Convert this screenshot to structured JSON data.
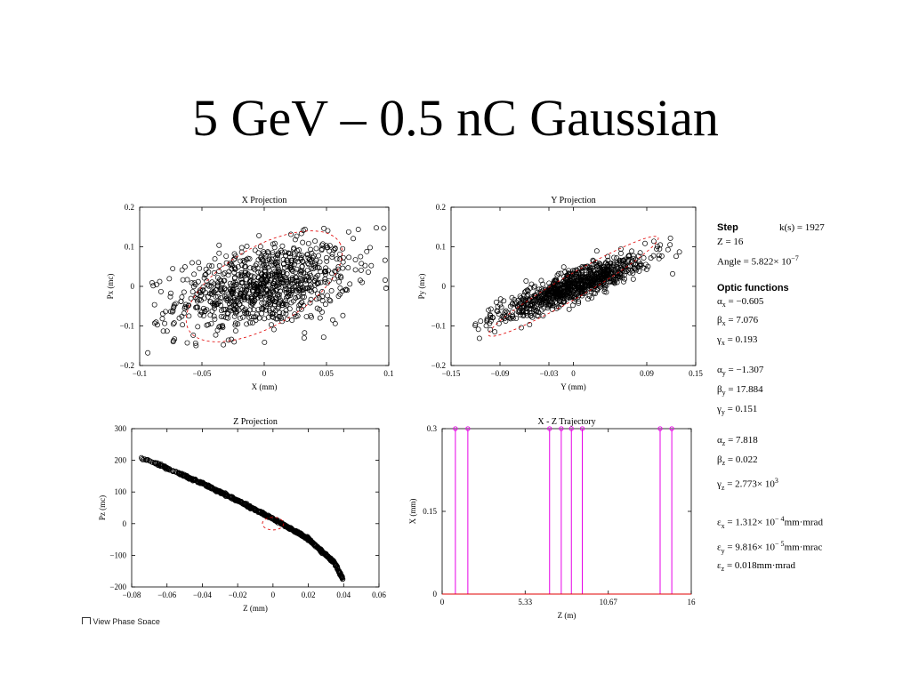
{
  "title": "5 GeV – 0.5 nC Gaussian",
  "info": {
    "step_label": "Step",
    "k_text": "k(s) = 1927",
    "z_text": "Z = 16",
    "angle_text": "Angle = 5.822× 10",
    "angle_exp": "−7",
    "optic_label": "Optic functions",
    "alpha_x": "= −0.605",
    "beta_x": "= 7.076",
    "gamma_x": "= 0.193",
    "alpha_y": "= −1.307",
    "beta_y": "= 17.884",
    "gamma_y": "= 0.151",
    "alpha_z": "= 7.818",
    "beta_z": "= 0.022",
    "gamma_z": "= 2.773× 10",
    "gamma_z_exp": "3",
    "eps_x": "= 1.312× 10",
    "eps_x_exp": "− 4",
    "eps_x_unit": "mm·mrad",
    "eps_y": "= 9.816× 10",
    "eps_y_exp": "− 5",
    "eps_y_unit": "mm·mrac",
    "eps_z": "= 0.018mm·mrad"
  },
  "footer": "View Phase Space",
  "chart_data": [
    {
      "type": "scatter",
      "title": "X Projection",
      "xlabel": "X (mm)",
      "ylabel": "Px (mc)",
      "xlim": [
        -0.1,
        0.1
      ],
      "ylim": [
        -0.2,
        0.2
      ],
      "xticks": [
        "−0.1",
        "−0.05",
        "0",
        "0.05",
        "0.1"
      ],
      "yticks": [
        "0.2",
        "0.1",
        "0",
        "−0.1",
        "−0.2"
      ],
      "distribution": {
        "x_mean": 0.0,
        "x_std": 0.035,
        "y_mean": 0.0,
        "y_std": 0.055,
        "correlation": 0.35,
        "n_points": 900
      },
      "sample_points": [
        [
          -0.0935,
          -0.168
        ],
        [
          -0.081,
          -0.113
        ],
        [
          -0.078,
          -0.113
        ],
        [
          0.09,
          0.148
        ],
        [
          0.096,
          0.147
        ],
        [
          0.097,
          0.066
        ],
        [
          0.085,
          0.098
        ],
        [
          -0.072,
          -0.133
        ],
        [
          0.055,
          -0.085
        ],
        [
          0.057,
          -0.094
        ]
      ],
      "ellipse": {
        "x_center": 0.0,
        "y_center": 0.0,
        "x_radius": 0.07,
        "y_radius": 0.1,
        "tilt_deg": 30
      },
      "grid": false
    },
    {
      "type": "scatter",
      "title": "Y Projection",
      "xlabel": "Y (mm)",
      "ylabel": "Py (mc)",
      "xlim": [
        -0.15,
        0.15
      ],
      "ylim": [
        -0.2,
        0.2
      ],
      "xticks": [
        "−0.15",
        "−0.09",
        "−0.03",
        "0",
        "0.09",
        "0.15"
      ],
      "distribution": {
        "x_mean": 0.0,
        "x_std": 0.045,
        "y_mean": 0.0,
        "y_std": 0.04,
        "correlation": 0.88,
        "n_points": 900
      },
      "sample_points": [
        [
          -0.12,
          -0.095
        ],
        [
          -0.104,
          -0.06
        ],
        [
          0.13,
          0.087
        ],
        [
          0.126,
          0.076
        ],
        [
          0.105,
          0.07
        ]
      ],
      "ellipse": {
        "x_center": 0.0,
        "y_center": 0.0,
        "x_radius": 0.12,
        "y_radius": 0.03,
        "tilt_deg": 30
      },
      "grid": false
    },
    {
      "type": "scatter",
      "title": "Z Projection",
      "xlabel": "Z (mm)",
      "ylabel": "Pz (mc)",
      "xlim": [
        -0.08,
        0.06
      ],
      "ylim": [
        -200,
        300
      ],
      "xticks": [
        "−0.08",
        "−0.06",
        "−0.04",
        "−0.02",
        "0",
        "0.02",
        "0.04",
        "0.06"
      ],
      "yticks": [
        "300",
        "200",
        "100",
        "0",
        "−100",
        "−200"
      ],
      "curve": [
        [
          -0.0745,
          208
        ],
        [
          -0.06,
          175
        ],
        [
          -0.04,
          127
        ],
        [
          -0.02,
          73
        ],
        [
          0.0,
          15
        ],
        [
          0.02,
          -48
        ],
        [
          0.035,
          -125
        ],
        [
          0.0395,
          -175
        ]
      ],
      "ellipse": {
        "x_center": 0.0,
        "y_center": 0,
        "x_radius": 0.006,
        "y_radius": 20
      },
      "grid": false
    },
    {
      "type": "line",
      "title": "X - Z Trajectory",
      "xlabel": "Z (m)",
      "ylabel": "X (mm)",
      "xlim": [
        0,
        16
      ],
      "ylim": [
        0,
        0.3
      ],
      "xticks": [
        "0",
        "5.33",
        "10.67",
        "16"
      ],
      "yticks": [
        "0.3",
        "0.15",
        "0"
      ],
      "element_positions": [
        0.85,
        1.65,
        6.9,
        7.65,
        8.3,
        9.0,
        14.0,
        14.75
      ],
      "line_color": "#e600e6",
      "grid": false
    }
  ]
}
